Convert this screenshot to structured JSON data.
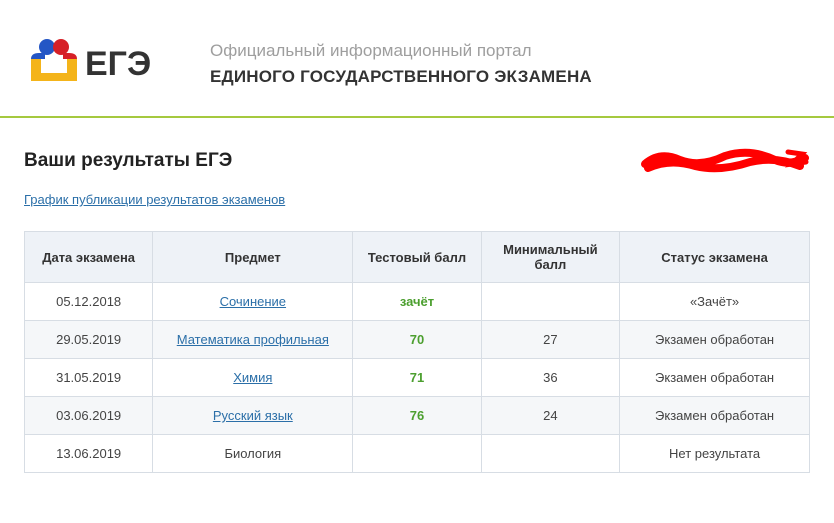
{
  "header": {
    "subtitle": "Официальный информационный портал",
    "title": "ЕДИНОГО ГОСУДАРСТВЕННОГО ЭКЗАМЕНА",
    "logo_text": "ЕГЭ",
    "logo_colors": {
      "head_blue": "#2456c5",
      "head_red": "#d62027",
      "box_yellow": "#f4b41a",
      "text": "#333333"
    },
    "underline_color": "#a5c93f"
  },
  "content": {
    "heading": "Ваши результаты ЕГЭ",
    "schedule_link_label": "График публикации результатов экзаменов",
    "scribble_color": "#ff0000"
  },
  "table": {
    "header_bg": "#eef2f7",
    "border_color": "#d7dde4",
    "row_alt_bg": "#f5f7f9",
    "link_color": "#2b6fa8",
    "score_color": "#4c9f2f",
    "columns": {
      "date": "Дата экзамена",
      "subject": "Предмет",
      "test_score": "Тестовый балл",
      "min_score": "Минимальный балл",
      "status": "Статус экзамена"
    },
    "rows": [
      {
        "date": "05.12.2018",
        "subject": "Сочинение",
        "subject_is_link": true,
        "test_score": "зачёт",
        "score_is_text": true,
        "min_score": "",
        "status": "«Зачёт»"
      },
      {
        "date": "29.05.2019",
        "subject": "Математика профильная",
        "subject_is_link": true,
        "test_score": "70",
        "score_is_text": false,
        "min_score": "27",
        "status": "Экзамен обработан"
      },
      {
        "date": "31.05.2019",
        "subject": "Химия",
        "subject_is_link": true,
        "test_score": "71",
        "score_is_text": false,
        "min_score": "36",
        "status": "Экзамен обработан"
      },
      {
        "date": "03.06.2019",
        "subject": "Русский язык",
        "subject_is_link": true,
        "test_score": "76",
        "score_is_text": false,
        "min_score": "24",
        "status": "Экзамен обработан"
      },
      {
        "date": "13.06.2019",
        "subject": "Биология",
        "subject_is_link": false,
        "test_score": "",
        "score_is_text": false,
        "min_score": "",
        "status": "Нет результата"
      }
    ]
  }
}
